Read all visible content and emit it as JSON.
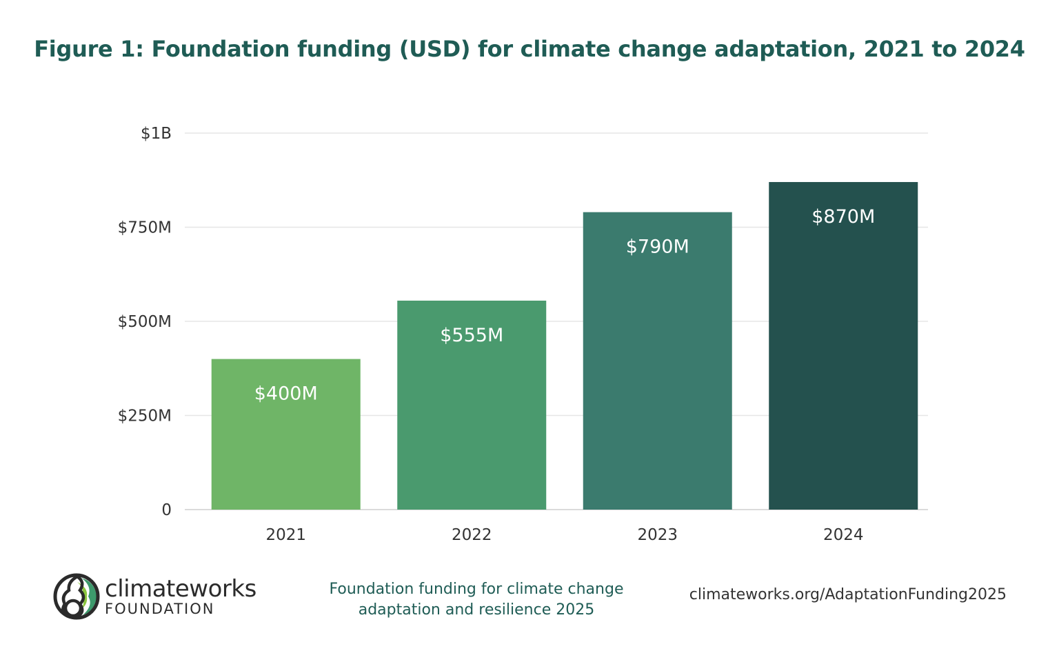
{
  "chart_data": {
    "type": "bar",
    "title": "Figure 1: Foundation funding (USD) for climate change adaptation, 2021 to 2024",
    "categories": [
      "2021",
      "2022",
      "2023",
      "2024"
    ],
    "values": [
      400,
      555,
      790,
      870
    ],
    "data_labels": [
      "$400M",
      "$555M",
      "$790M",
      "$870M"
    ],
    "unit": "USD millions",
    "ylim": [
      0,
      1000
    ],
    "yticks": [
      0,
      250,
      500,
      750,
      1000
    ],
    "ytick_labels": [
      "0",
      "$250M",
      "$500M",
      "$750M",
      "$1B"
    ],
    "grid": true,
    "xlabel": "",
    "ylabel": "",
    "colors": [
      "#6fb567",
      "#4a9a6e",
      "#3b7b6e",
      "#24514e"
    ]
  },
  "footer": {
    "logo_name": "climateworks",
    "logo_sub": "FOUNDATION",
    "source_line1": "Foundation funding for climate change",
    "source_line2": "adaptation and resilience 2025",
    "url": "climateworks.org/AdaptationFunding2025"
  },
  "title_color": "#1f5c55"
}
